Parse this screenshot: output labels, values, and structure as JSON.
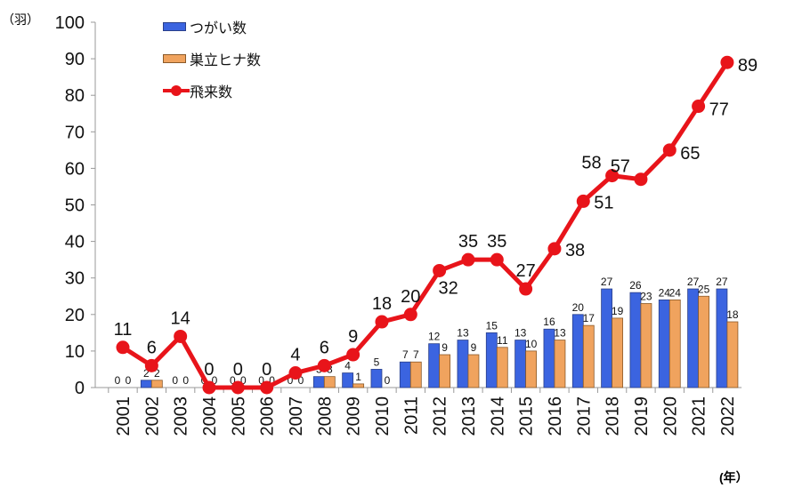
{
  "chart_data": {
    "type": "bar+line",
    "y_unit_label": "（羽）",
    "x_unit_label": "(年）",
    "ylim": [
      0,
      100
    ],
    "yticks": [
      0,
      10,
      20,
      30,
      40,
      50,
      60,
      70,
      80,
      90,
      100
    ],
    "categories": [
      "2001",
      "2002",
      "2003",
      "2004",
      "2005",
      "2006",
      "2007",
      "2008",
      "2009",
      "2010",
      "2011",
      "2012",
      "2013",
      "2014",
      "2015",
      "2016",
      "2017",
      "2018",
      "2019",
      "2020",
      "2021",
      "2022"
    ],
    "series": [
      {
        "name": "つがい数",
        "type": "bar",
        "color": "#3b64e0",
        "values": [
          0,
          2,
          0,
          0,
          0,
          0,
          0,
          3,
          4,
          5,
          7,
          12,
          13,
          15,
          13,
          16,
          20,
          27,
          26,
          24,
          27,
          27
        ]
      },
      {
        "name": "巣立ヒナ数",
        "type": "bar",
        "color": "#f0a35e",
        "values": [
          0,
          2,
          0,
          0,
          0,
          0,
          0,
          3,
          1,
          0,
          7,
          9,
          9,
          11,
          10,
          13,
          17,
          19,
          23,
          24,
          25,
          18
        ]
      },
      {
        "name": "飛来数",
        "type": "line",
        "color": "#e8141a",
        "values": [
          11,
          6,
          14,
          0,
          0,
          0,
          4,
          6,
          9,
          18,
          20,
          32,
          35,
          35,
          27,
          38,
          51,
          58,
          57,
          65,
          77,
          89
        ]
      }
    ],
    "legend_position": "top-left"
  }
}
